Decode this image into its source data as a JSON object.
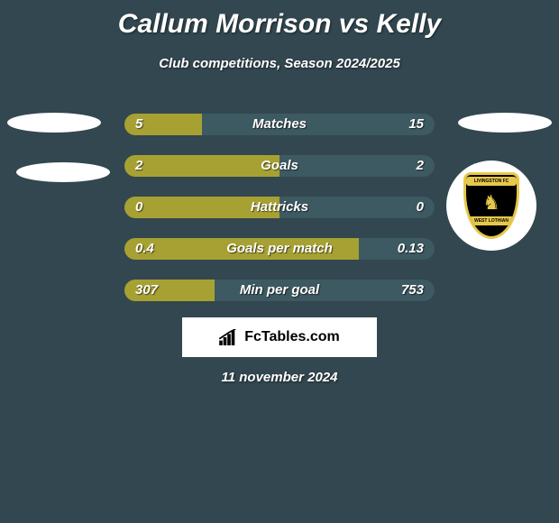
{
  "title": "Callum Morrison vs Kelly",
  "subtitle": "Club competitions, Season 2024/2025",
  "date": "11 november 2024",
  "brand": "FcTables.com",
  "colors": {
    "background": "#32474f",
    "barLeft": "#a7a133",
    "barRight": "#3d5961",
    "text": "#ffffff",
    "brandBoxBg": "#ffffff",
    "brandText": "#000000",
    "crestBg": "#000000",
    "crestAccent": "#e6c84a"
  },
  "crest": {
    "topText": "LIVINGSTON FC",
    "bottomText": "WEST LOTHIAN"
  },
  "barWidthPx": 344,
  "rows": [
    {
      "label": "Matches",
      "leftVal": "5",
      "rightVal": "15",
      "leftPct": 25,
      "rightPct": 75
    },
    {
      "label": "Goals",
      "leftVal": "2",
      "rightVal": "2",
      "leftPct": 50,
      "rightPct": 50
    },
    {
      "label": "Hattricks",
      "leftVal": "0",
      "rightVal": "0",
      "leftPct": 50,
      "rightPct": 50
    },
    {
      "label": "Goals per match",
      "leftVal": "0.4",
      "rightVal": "0.13",
      "leftPct": 75.5,
      "rightPct": 24.5
    },
    {
      "label": "Min per goal",
      "leftVal": "307",
      "rightVal": "753",
      "leftPct": 29,
      "rightPct": 71
    }
  ]
}
